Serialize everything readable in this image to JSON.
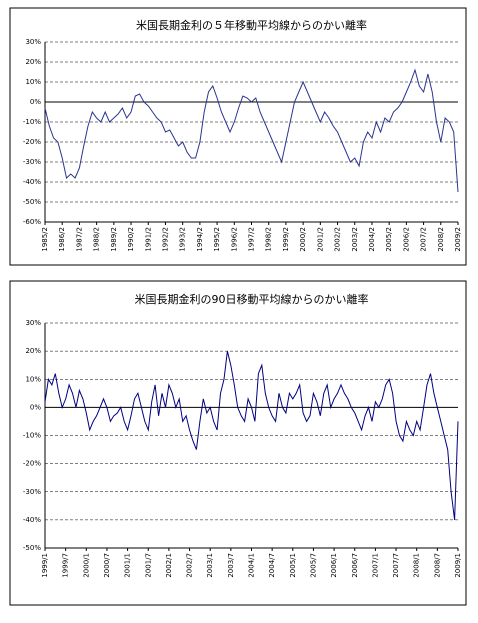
{
  "chart_data": [
    {
      "type": "line",
      "title": "米国長期金利の５年移動平均線からのかい離率",
      "categories": [
        "1985/2",
        null,
        null,
        null,
        "1986/2",
        null,
        null,
        null,
        "1987/2",
        null,
        null,
        null,
        "1988/2",
        null,
        null,
        null,
        "1989/2",
        null,
        null,
        null,
        "1990/2",
        null,
        null,
        null,
        "1991/2",
        null,
        null,
        null,
        "1992/2",
        null,
        null,
        null,
        "1993/2",
        null,
        null,
        null,
        "1994/2",
        null,
        null,
        null,
        "1995/2",
        null,
        null,
        null,
        "1996/2",
        null,
        null,
        null,
        "1997/2",
        null,
        null,
        null,
        "1998/2",
        null,
        null,
        null,
        "1999/2",
        null,
        null,
        null,
        "2000/2",
        null,
        null,
        null,
        "2001/2",
        null,
        null,
        null,
        "2002/2",
        null,
        null,
        null,
        "2003/2",
        null,
        null,
        null,
        "2004/2",
        null,
        null,
        null,
        "2005/2",
        null,
        null,
        null,
        "2006/2",
        null,
        null,
        null,
        "2007/2",
        null,
        null,
        null,
        "2008/2",
        null,
        null,
        null,
        "2009/2"
      ],
      "values": [
        -3,
        -12,
        -18,
        -20,
        -28,
        -38,
        -36,
        -38,
        -33,
        -22,
        -12,
        -5,
        -8,
        -10,
        -5,
        -10,
        -8,
        -6,
        -3,
        -8,
        -5,
        3,
        4,
        0,
        -2,
        -5,
        -8,
        -10,
        -15,
        -14,
        -18,
        -22,
        -20,
        -25,
        -28,
        -28,
        -20,
        -5,
        5,
        8,
        2,
        -5,
        -10,
        -15,
        -10,
        -3,
        3,
        2,
        0,
        2,
        -5,
        -10,
        -15,
        -20,
        -25,
        -30,
        -20,
        -10,
        0,
        5,
        10,
        5,
        0,
        -5,
        -10,
        -5,
        -8,
        -12,
        -15,
        -20,
        -25,
        -30,
        -28,
        -32,
        -20,
        -15,
        -18,
        -10,
        -15,
        -8,
        -10,
        -5,
        -3,
        0,
        5,
        10,
        16,
        8,
        5,
        14,
        5,
        -10,
        -20,
        -8,
        -10,
        -15,
        -45
      ],
      "color": "#2b3590",
      "ylim": [
        -60,
        30
      ],
      "yticks": [
        {
          "value": 30,
          "label": "30%"
        },
        {
          "value": 20,
          "label": "20%"
        },
        {
          "value": 10,
          "label": "10%"
        },
        {
          "value": 0,
          "label": "0%"
        },
        {
          "value": -10,
          "label": "-10%"
        },
        {
          "value": -20,
          "label": "-20%"
        },
        {
          "value": -30,
          "label": "-30%"
        },
        {
          "value": -40,
          "label": "-40%"
        },
        {
          "value": -50,
          "label": "-50%"
        },
        {
          "value": -60,
          "label": "-60%"
        }
      ],
      "grid": true
    },
    {
      "type": "line",
      "title": "米国長期金利の90日移動平均線からのかい離率",
      "categories": [
        "1999/1",
        null,
        null,
        null,
        null,
        null,
        "1999/7",
        null,
        null,
        null,
        null,
        null,
        "2000/1",
        null,
        null,
        null,
        null,
        null,
        "2000/7",
        null,
        null,
        null,
        null,
        null,
        "2001/1",
        null,
        null,
        null,
        null,
        null,
        "2001/7",
        null,
        null,
        null,
        null,
        null,
        "2002/1",
        null,
        null,
        null,
        null,
        null,
        "2002/7",
        null,
        null,
        null,
        null,
        null,
        "2003/1",
        null,
        null,
        null,
        null,
        null,
        "2003/7",
        null,
        null,
        null,
        null,
        null,
        "2004/1",
        null,
        null,
        null,
        null,
        null,
        "2004/7",
        null,
        null,
        null,
        null,
        null,
        "2005/1",
        null,
        null,
        null,
        null,
        null,
        "2005/7",
        null,
        null,
        null,
        null,
        null,
        "2006/1",
        null,
        null,
        null,
        null,
        null,
        "2006/7",
        null,
        null,
        null,
        null,
        null,
        "2007/1",
        null,
        null,
        null,
        null,
        null,
        "2007/7",
        null,
        null,
        null,
        null,
        null,
        "2008/1",
        null,
        null,
        null,
        null,
        null,
        "2008/7",
        null,
        null,
        null,
        null,
        null,
        "2009/1"
      ],
      "values": [
        2,
        10,
        8,
        12,
        5,
        0,
        3,
        8,
        5,
        0,
        6,
        3,
        -2,
        -8,
        -5,
        -3,
        0,
        3,
        0,
        -5,
        -3,
        -2,
        0,
        -5,
        -8,
        -3,
        3,
        5,
        0,
        -5,
        -8,
        2,
        8,
        -3,
        5,
        0,
        8,
        5,
        0,
        3,
        -5,
        -3,
        -8,
        -12,
        -15,
        -5,
        3,
        -2,
        0,
        -5,
        -8,
        5,
        10,
        20,
        15,
        8,
        0,
        -3,
        -5,
        3,
        0,
        -5,
        12,
        15,
        5,
        0,
        -3,
        -5,
        5,
        0,
        -2,
        5,
        3,
        5,
        8,
        -2,
        -5,
        -3,
        5,
        2,
        -3,
        5,
        8,
        0,
        3,
        5,
        8,
        5,
        3,
        0,
        -2,
        -5,
        -8,
        -3,
        0,
        -5,
        2,
        0,
        3,
        8,
        10,
        5,
        -5,
        -10,
        -12,
        -5,
        -8,
        -10,
        -5,
        -8,
        0,
        8,
        12,
        5,
        0,
        -5,
        -10,
        -15,
        -30,
        -40,
        -5
      ],
      "color": "#000080",
      "ylim": [
        -50,
        30
      ],
      "yticks": [
        {
          "value": 30,
          "label": "30%"
        },
        {
          "value": 20,
          "label": "20%"
        },
        {
          "value": 10,
          "label": "10%"
        },
        {
          "value": 0,
          "label": "0%"
        },
        {
          "value": -10,
          "label": "-10%"
        },
        {
          "value": -20,
          "label": "-20%"
        },
        {
          "value": -30,
          "label": "-30%"
        },
        {
          "value": -40,
          "label": "-40%"
        },
        {
          "value": -50,
          "label": "-50%"
        }
      ],
      "grid": true
    }
  ]
}
